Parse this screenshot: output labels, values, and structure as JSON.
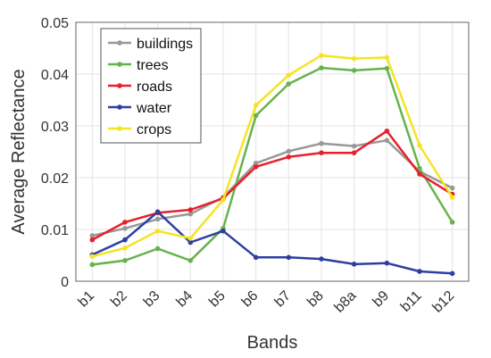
{
  "chart_data": {
    "type": "line",
    "title": "",
    "xlabel": "Bands",
    "ylabel": "Average Reflectance",
    "categories": [
      "b1",
      "b2",
      "b3",
      "b4",
      "b5",
      "b6",
      "b7",
      "b8",
      "b8a",
      "b9",
      "b11",
      "b12"
    ],
    "ylim": [
      0,
      0.05
    ],
    "yticks": [
      0,
      0.01,
      0.02,
      0.03,
      0.04,
      0.05
    ],
    "ytick_labels": [
      "0",
      "0.01",
      "0.02",
      "0.03",
      "0.04",
      "0.05"
    ],
    "grid": true,
    "legend_position": "top-left",
    "series": [
      {
        "name": "buildings",
        "color": "#999999",
        "values": [
          0.0088,
          0.0102,
          0.012,
          0.013,
          0.0162,
          0.0228,
          0.0251,
          0.0266,
          0.0261,
          0.0272,
          0.0212,
          0.018
        ]
      },
      {
        "name": "trees",
        "color": "#66b34d",
        "values": [
          0.0032,
          0.004,
          0.0063,
          0.004,
          0.0102,
          0.032,
          0.0381,
          0.0412,
          0.0407,
          0.0411,
          0.0218,
          0.0114
        ]
      },
      {
        "name": "roads",
        "color": "#e8202a",
        "values": [
          0.008,
          0.0114,
          0.0132,
          0.0138,
          0.016,
          0.0221,
          0.024,
          0.0248,
          0.0248,
          0.029,
          0.0207,
          0.0168
        ]
      },
      {
        "name": "water",
        "color": "#2e3fa0",
        "values": [
          0.0051,
          0.008,
          0.0134,
          0.0075,
          0.0097,
          0.0046,
          0.0046,
          0.0043,
          0.0033,
          0.0035,
          0.0019,
          0.0015
        ]
      },
      {
        "name": "crops",
        "color": "#f4e424",
        "values": [
          0.0048,
          0.0064,
          0.0097,
          0.0083,
          0.0157,
          0.034,
          0.0398,
          0.0436,
          0.043,
          0.0432,
          0.0262,
          0.0162
        ]
      }
    ]
  }
}
